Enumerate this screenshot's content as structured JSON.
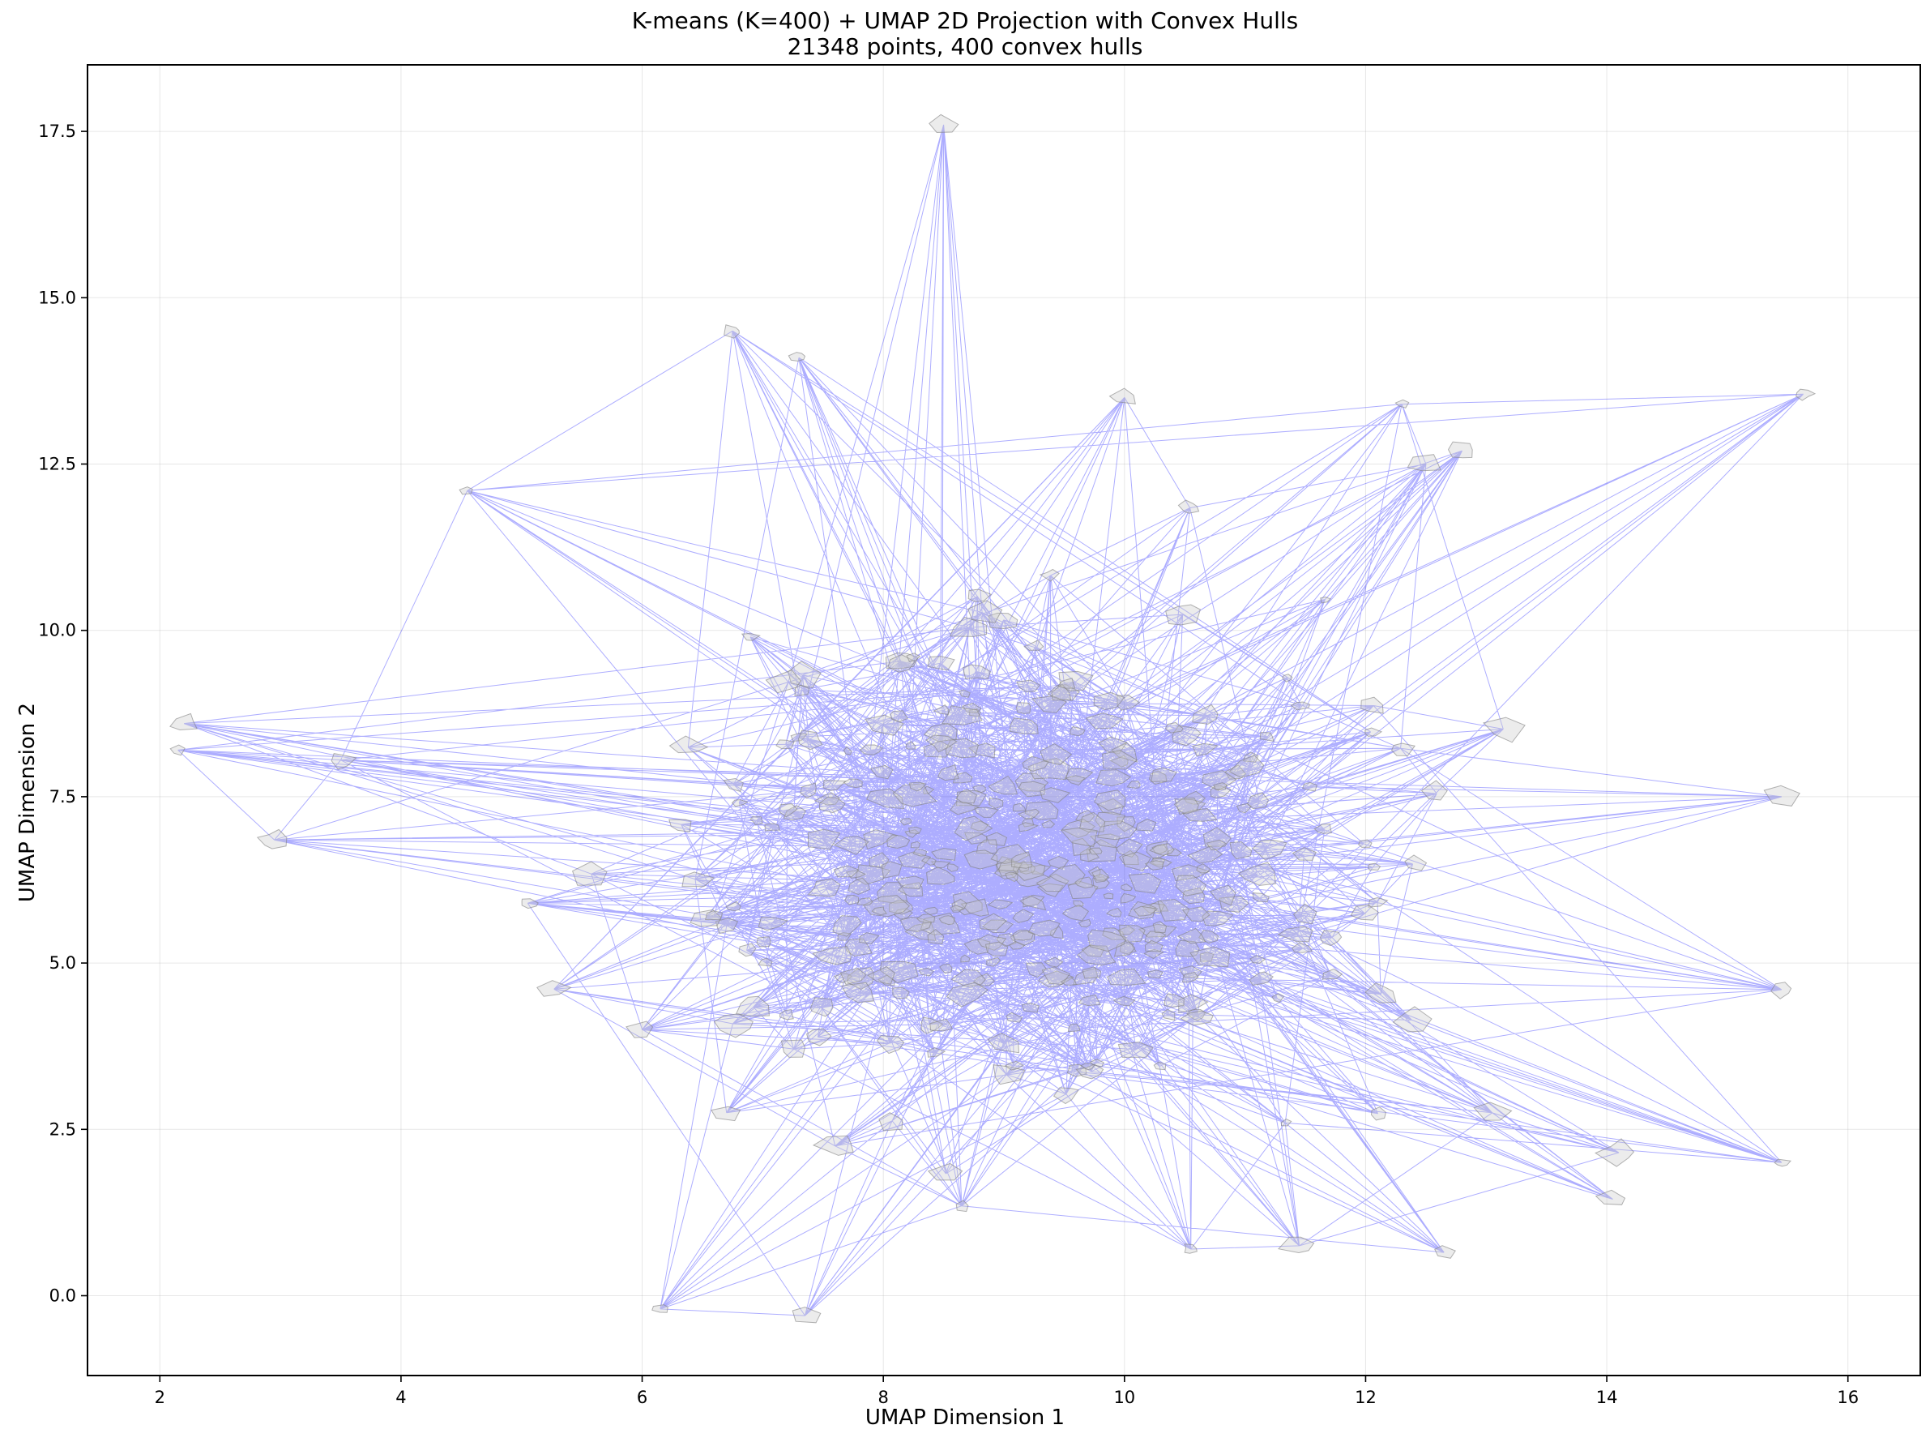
{
  "chart_data": {
    "type": "scatter",
    "title": "K-means (K=400) + UMAP 2D Projection with Convex Hulls",
    "subtitle": "21348 points, 400 convex hulls",
    "xlabel": "UMAP Dimension 1",
    "ylabel": "UMAP Dimension 2",
    "xlim": [
      1.4,
      16.6
    ],
    "ylim": [
      -1.2,
      18.5
    ],
    "xticks": [
      2,
      4,
      6,
      8,
      10,
      12,
      14,
      16
    ],
    "xtick_labels": [
      "2",
      "4",
      "6",
      "8",
      "10",
      "12",
      "14",
      "16"
    ],
    "yticks": [
      0.0,
      2.5,
      5.0,
      7.5,
      10.0,
      12.5,
      15.0,
      17.5
    ],
    "ytick_labels": [
      "0.0",
      "2.5",
      "5.0",
      "7.5",
      "10.0",
      "12.5",
      "15.0",
      "17.5"
    ],
    "grid": true,
    "line_color": "#0000ff",
    "hull_color": "#808080",
    "extreme_points": [
      {
        "x": 8.5,
        "y": 17.6
      },
      {
        "x": 6.75,
        "y": 14.5
      },
      {
        "x": 7.3,
        "y": 14.1
      },
      {
        "x": 10.0,
        "y": 13.5
      },
      {
        "x": 12.3,
        "y": 13.4
      },
      {
        "x": 15.63,
        "y": 13.55
      },
      {
        "x": 12.8,
        "y": 12.7
      },
      {
        "x": 4.55,
        "y": 12.1
      },
      {
        "x": 12.5,
        "y": 12.5
      },
      {
        "x": 2.2,
        "y": 8.6
      },
      {
        "x": 2.15,
        "y": 8.2
      },
      {
        "x": 3.5,
        "y": 8.05
      },
      {
        "x": 2.95,
        "y": 6.85
      },
      {
        "x": 5.05,
        "y": 5.9
      },
      {
        "x": 6.0,
        "y": 4.0
      },
      {
        "x": 15.45,
        "y": 7.5
      },
      {
        "x": 15.45,
        "y": 4.6
      },
      {
        "x": 15.45,
        "y": 2.0
      },
      {
        "x": 14.05,
        "y": 1.45
      },
      {
        "x": 13.05,
        "y": 2.75
      },
      {
        "x": 12.65,
        "y": 0.65
      },
      {
        "x": 11.45,
        "y": 0.75
      },
      {
        "x": 10.55,
        "y": 0.7
      },
      {
        "x": 8.65,
        "y": 1.35
      },
      {
        "x": 7.6,
        "y": 2.25
      },
      {
        "x": 6.7,
        "y": 2.75
      },
      {
        "x": 6.15,
        "y": -0.2
      },
      {
        "x": 7.35,
        "y": -0.3
      },
      {
        "x": 14.1,
        "y": 2.15
      }
    ]
  }
}
